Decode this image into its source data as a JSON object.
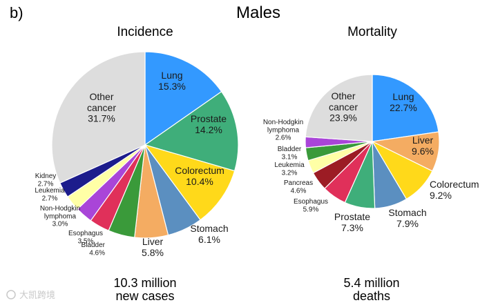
{
  "panel_label": "b)",
  "figure_title": "Males",
  "watermark": "大凯跨境",
  "colors": {
    "Lung": "#3399ff",
    "Prostate": "#3fae7a",
    "Colorectum": "#ffd91a",
    "Stomach": "#5b8fc0",
    "Liver": "#f4ac62",
    "Bladder": "#3a9a3a",
    "Esophagus": "#e0305a",
    "Non-Hodgkin lymphoma": "#a945d8",
    "Leukemia": "#ffffa6",
    "Kidney": "#1c1c8c",
    "Pancreas": "#9c1c24",
    "Other cancer": "#dddddd"
  },
  "chart_data": [
    {
      "type": "pie",
      "title": "Incidence",
      "caption": [
        "10.3 million",
        "new cases"
      ],
      "slices": [
        {
          "label": [
            "Lung"
          ],
          "pct": "15.3%",
          "value": 15.3,
          "color": "Lung"
        },
        {
          "label": [
            "Prostate"
          ],
          "pct": "14.2%",
          "value": 14.2,
          "color": "Prostate"
        },
        {
          "label": [
            "Colorectum"
          ],
          "pct": "10.4%",
          "value": 10.4,
          "color": "Colorectum"
        },
        {
          "label": [
            "Stomach"
          ],
          "pct": "6.1%",
          "value": 6.1,
          "color": "Stomach"
        },
        {
          "label": [
            "Liver"
          ],
          "pct": "5.8%",
          "value": 5.8,
          "color": "Liver"
        },
        {
          "label": [
            "Bladder"
          ],
          "pct": "4.6%",
          "value": 4.6,
          "color": "Bladder"
        },
        {
          "label": [
            "Esophagus"
          ],
          "pct": "3.5%",
          "value": 3.5,
          "color": "Esophagus"
        },
        {
          "label": [
            "Non-Hodgkin",
            "lymphoma"
          ],
          "pct": "3.0%",
          "value": 3.0,
          "color": "Non-Hodgkin lymphoma"
        },
        {
          "label": [
            "Leukemia"
          ],
          "pct": "2.7%",
          "value": 2.7,
          "color": "Leukemia"
        },
        {
          "label": [
            "Kidney"
          ],
          "pct": "2.7%",
          "value": 2.7,
          "color": "Kidney"
        },
        {
          "label": [
            "Other",
            "cancer"
          ],
          "pct": "31.7%",
          "value": 31.7,
          "color": "Other cancer"
        }
      ]
    },
    {
      "type": "pie",
      "title": "Mortality",
      "caption": [
        "5.4 million",
        "deaths"
      ],
      "slices": [
        {
          "label": [
            "Lung"
          ],
          "pct": "22.7%",
          "value": 22.7,
          "color": "Lung"
        },
        {
          "label": [
            "Liver"
          ],
          "pct": "9.6%",
          "value": 9.6,
          "color": "Liver"
        },
        {
          "label": [
            "Colorectum"
          ],
          "pct": "9.2%",
          "value": 9.2,
          "color": "Colorectum"
        },
        {
          "label": [
            "Stomach"
          ],
          "pct": "7.9%",
          "value": 7.9,
          "color": "Stomach"
        },
        {
          "label": [
            "Prostate"
          ],
          "pct": "7.3%",
          "value": 7.3,
          "color": "Prostate"
        },
        {
          "label": [
            "Esophagus"
          ],
          "pct": "5.9%",
          "value": 5.9,
          "color": "Esophagus"
        },
        {
          "label": [
            "Pancreas"
          ],
          "pct": "4.6%",
          "value": 4.6,
          "color": "Pancreas"
        },
        {
          "label": [
            "Leukemia"
          ],
          "pct": "3.2%",
          "value": 3.2,
          "color": "Leukemia"
        },
        {
          "label": [
            "Bladder"
          ],
          "pct": "3.1%",
          "value": 3.1,
          "color": "Bladder"
        },
        {
          "label": [
            "Non-Hodgkin",
            "lymphoma"
          ],
          "pct": "2.6%",
          "value": 2.6,
          "color": "Non-Hodgkin lymphoma"
        },
        {
          "label": [
            "Other",
            "cancer"
          ],
          "pct": "23.9%",
          "value": 23.9,
          "color": "Other cancer"
        }
      ]
    }
  ]
}
